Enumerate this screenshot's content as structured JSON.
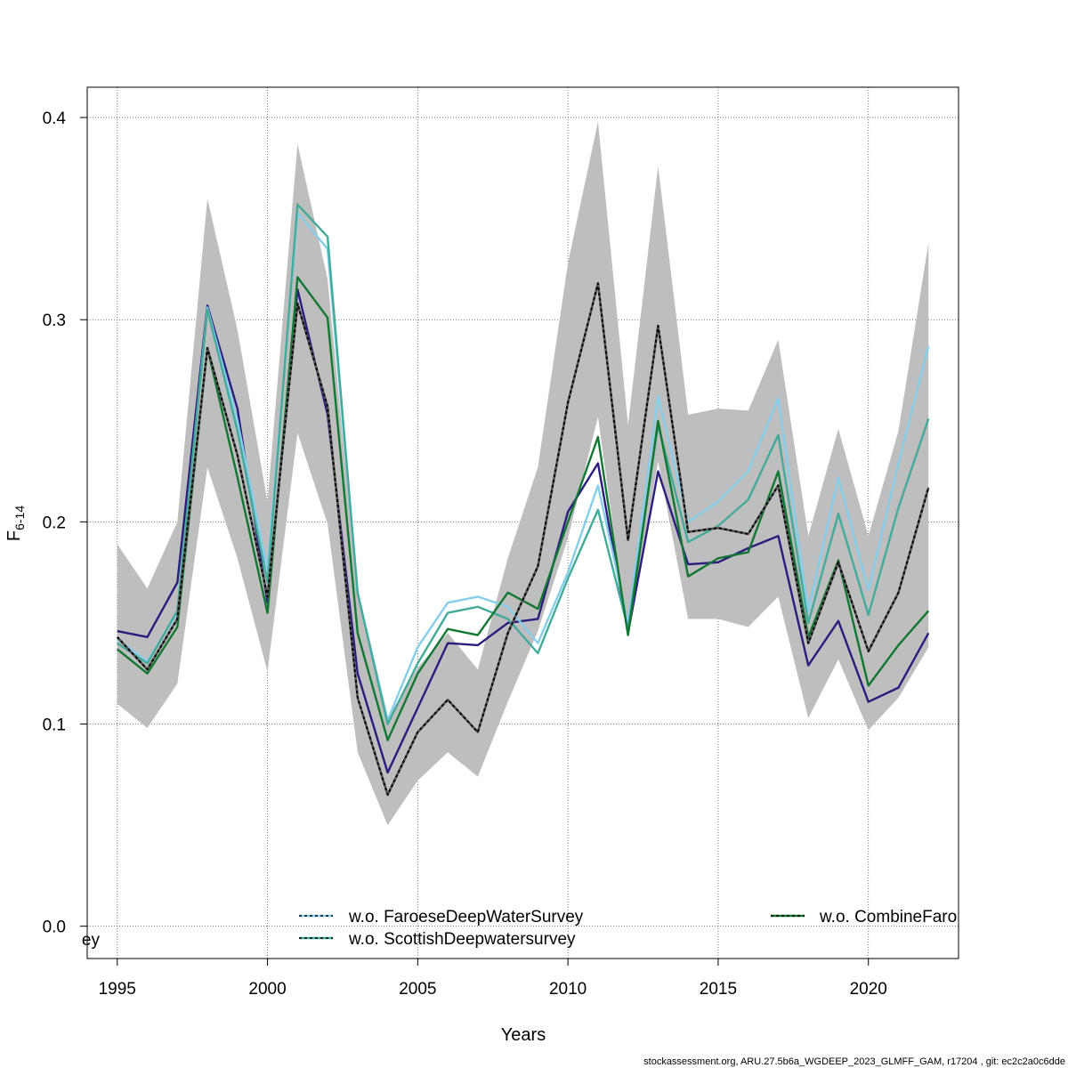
{
  "chart_data": {
    "type": "line",
    "xlabel": "Years",
    "ylabel": "F",
    "ylabel_subscript": "6-14",
    "xlim": [
      1994,
      2023
    ],
    "ylim": [
      -0.016,
      0.415
    ],
    "x_ticks": [
      1995,
      2000,
      2005,
      2010,
      2015,
      2020
    ],
    "y_ticks": [
      0.0,
      0.1,
      0.2,
      0.3,
      0.4
    ],
    "y_tick_labels": [
      "0.0",
      "0.1",
      "0.2",
      "0.3",
      "0.4"
    ],
    "grid": true,
    "years": [
      1995,
      1996,
      1997,
      1998,
      1999,
      2000,
      2001,
      2002,
      2003,
      2004,
      2005,
      2006,
      2007,
      2008,
      2009,
      2010,
      2011,
      2012,
      2013,
      2014,
      2015,
      2016,
      2017,
      2018,
      2019,
      2020,
      2021,
      2022
    ],
    "band": {
      "upper": [
        0.189,
        0.167,
        0.2,
        0.36,
        0.295,
        0.21,
        0.387,
        0.32,
        0.165,
        0.103,
        0.128,
        0.145,
        0.127,
        0.182,
        0.227,
        0.328,
        0.398,
        0.248,
        0.376,
        0.253,
        0.256,
        0.255,
        0.29,
        0.193,
        0.246,
        0.193,
        0.245,
        0.338
      ],
      "lower": [
        0.11,
        0.098,
        0.12,
        0.227,
        0.182,
        0.126,
        0.244,
        0.199,
        0.086,
        0.05,
        0.072,
        0.086,
        0.074,
        0.111,
        0.146,
        0.192,
        0.252,
        0.143,
        0.23,
        0.152,
        0.152,
        0.148,
        0.163,
        0.103,
        0.132,
        0.097,
        0.113,
        0.138
      ],
      "color": "#bebebe"
    },
    "series": [
      {
        "color": "#2b1d7e",
        "dashed": false,
        "values": [
          0.146,
          0.143,
          0.17,
          0.307,
          0.256,
          0.16,
          0.315,
          0.253,
          0.125,
          0.076,
          0.108,
          0.14,
          0.139,
          0.15,
          0.152,
          0.205,
          0.229,
          0.145,
          0.225,
          0.179,
          0.18,
          0.187,
          0.193,
          0.129,
          0.151,
          0.111,
          0.118,
          0.145
        ]
      },
      {
        "color": "#87ceeb",
        "dashed": false,
        "values": [
          0.142,
          0.131,
          0.155,
          0.306,
          0.25,
          0.176,
          0.353,
          0.335,
          0.165,
          0.102,
          0.138,
          0.16,
          0.163,
          0.158,
          0.14,
          0.175,
          0.218,
          0.15,
          0.262,
          0.2,
          0.21,
          0.225,
          0.261,
          0.156,
          0.222,
          0.166,
          0.229,
          0.287
        ]
      },
      {
        "color": "#44aa99",
        "dashed": false,
        "values": [
          0.14,
          0.13,
          0.156,
          0.305,
          0.245,
          0.17,
          0.357,
          0.341,
          0.165,
          0.1,
          0.13,
          0.155,
          0.158,
          0.152,
          0.135,
          0.172,
          0.206,
          0.147,
          0.248,
          0.19,
          0.198,
          0.211,
          0.243,
          0.15,
          0.204,
          0.154,
          0.207,
          0.251
        ]
      },
      {
        "color": "#117733",
        "dashed": false,
        "values": [
          0.137,
          0.125,
          0.148,
          0.286,
          0.222,
          0.155,
          0.321,
          0.301,
          0.145,
          0.092,
          0.125,
          0.147,
          0.144,
          0.165,
          0.157,
          0.2,
          0.242,
          0.144,
          0.25,
          0.173,
          0.182,
          0.185,
          0.225,
          0.143,
          0.181,
          0.119,
          0.139,
          0.156
        ]
      },
      {
        "color": "#000000",
        "dashed": true,
        "values": [
          0.143,
          0.127,
          0.152,
          0.286,
          0.233,
          0.163,
          0.308,
          0.257,
          0.113,
          0.065,
          0.096,
          0.112,
          0.096,
          0.145,
          0.178,
          0.259,
          0.318,
          0.191,
          0.297,
          0.195,
          0.197,
          0.194,
          0.218,
          0.14,
          0.18,
          0.136,
          0.165,
          0.217
        ]
      }
    ]
  },
  "legend": {
    "col1": [
      {
        "label": "w.o. FaroeseDeepWaterSurvey",
        "color": "#87ceeb"
      },
      {
        "label": "w.o. ScottishDeepwatersurvey",
        "color": "#44aa99"
      }
    ],
    "col2": [
      {
        "label": "w.o. CombineFaro",
        "color": "#117733"
      }
    ],
    "clipped_fragment": "ey"
  },
  "footer": "stockassessment.org, ARU.27.5b6a_WGDEEP_2023_GLMFF_GAM, r17204 , git: ec2c2a0c6dde"
}
